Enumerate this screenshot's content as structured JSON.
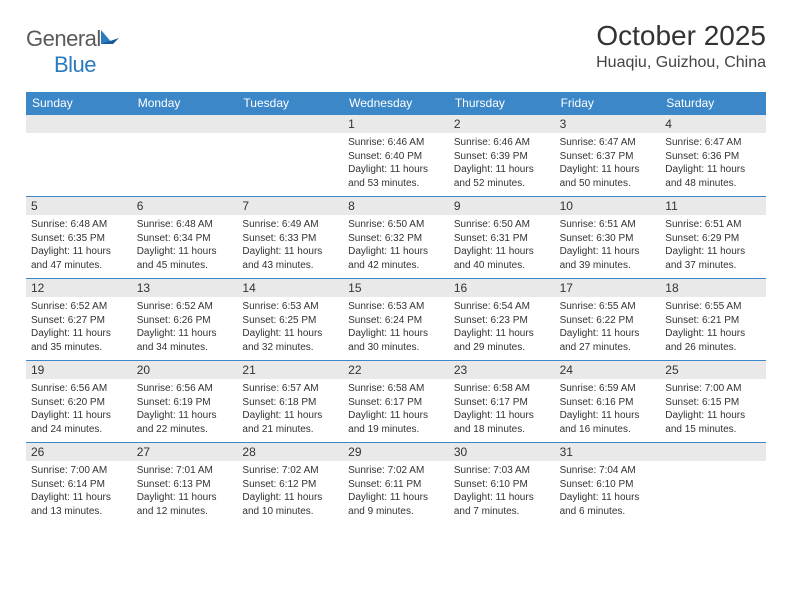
{
  "logo": {
    "left": "General",
    "right": "Blue"
  },
  "title": "October 2025",
  "location": "Huaqiu, Guizhou, China",
  "colors": {
    "header_bg": "#3b87c8",
    "header_fg": "#ffffff",
    "date_bg": "#e9e9e9",
    "border": "#3b87c8",
    "text": "#333333",
    "logo_gray": "#5a5a5a",
    "logo_blue": "#2b7bbf"
  },
  "day_names": [
    "Sunday",
    "Monday",
    "Tuesday",
    "Wednesday",
    "Thursday",
    "Friday",
    "Saturday"
  ],
  "weeks": [
    [
      {
        "date": "",
        "lines": []
      },
      {
        "date": "",
        "lines": []
      },
      {
        "date": "",
        "lines": []
      },
      {
        "date": "1",
        "lines": [
          "Sunrise: 6:46 AM",
          "Sunset: 6:40 PM",
          "Daylight: 11 hours and 53 minutes."
        ]
      },
      {
        "date": "2",
        "lines": [
          "Sunrise: 6:46 AM",
          "Sunset: 6:39 PM",
          "Daylight: 11 hours and 52 minutes."
        ]
      },
      {
        "date": "3",
        "lines": [
          "Sunrise: 6:47 AM",
          "Sunset: 6:37 PM",
          "Daylight: 11 hours and 50 minutes."
        ]
      },
      {
        "date": "4",
        "lines": [
          "Sunrise: 6:47 AM",
          "Sunset: 6:36 PM",
          "Daylight: 11 hours and 48 minutes."
        ]
      }
    ],
    [
      {
        "date": "5",
        "lines": [
          "Sunrise: 6:48 AM",
          "Sunset: 6:35 PM",
          "Daylight: 11 hours and 47 minutes."
        ]
      },
      {
        "date": "6",
        "lines": [
          "Sunrise: 6:48 AM",
          "Sunset: 6:34 PM",
          "Daylight: 11 hours and 45 minutes."
        ]
      },
      {
        "date": "7",
        "lines": [
          "Sunrise: 6:49 AM",
          "Sunset: 6:33 PM",
          "Daylight: 11 hours and 43 minutes."
        ]
      },
      {
        "date": "8",
        "lines": [
          "Sunrise: 6:50 AM",
          "Sunset: 6:32 PM",
          "Daylight: 11 hours and 42 minutes."
        ]
      },
      {
        "date": "9",
        "lines": [
          "Sunrise: 6:50 AM",
          "Sunset: 6:31 PM",
          "Daylight: 11 hours and 40 minutes."
        ]
      },
      {
        "date": "10",
        "lines": [
          "Sunrise: 6:51 AM",
          "Sunset: 6:30 PM",
          "Daylight: 11 hours and 39 minutes."
        ]
      },
      {
        "date": "11",
        "lines": [
          "Sunrise: 6:51 AM",
          "Sunset: 6:29 PM",
          "Daylight: 11 hours and 37 minutes."
        ]
      }
    ],
    [
      {
        "date": "12",
        "lines": [
          "Sunrise: 6:52 AM",
          "Sunset: 6:27 PM",
          "Daylight: 11 hours and 35 minutes."
        ]
      },
      {
        "date": "13",
        "lines": [
          "Sunrise: 6:52 AM",
          "Sunset: 6:26 PM",
          "Daylight: 11 hours and 34 minutes."
        ]
      },
      {
        "date": "14",
        "lines": [
          "Sunrise: 6:53 AM",
          "Sunset: 6:25 PM",
          "Daylight: 11 hours and 32 minutes."
        ]
      },
      {
        "date": "15",
        "lines": [
          "Sunrise: 6:53 AM",
          "Sunset: 6:24 PM",
          "Daylight: 11 hours and 30 minutes."
        ]
      },
      {
        "date": "16",
        "lines": [
          "Sunrise: 6:54 AM",
          "Sunset: 6:23 PM",
          "Daylight: 11 hours and 29 minutes."
        ]
      },
      {
        "date": "17",
        "lines": [
          "Sunrise: 6:55 AM",
          "Sunset: 6:22 PM",
          "Daylight: 11 hours and 27 minutes."
        ]
      },
      {
        "date": "18",
        "lines": [
          "Sunrise: 6:55 AM",
          "Sunset: 6:21 PM",
          "Daylight: 11 hours and 26 minutes."
        ]
      }
    ],
    [
      {
        "date": "19",
        "lines": [
          "Sunrise: 6:56 AM",
          "Sunset: 6:20 PM",
          "Daylight: 11 hours and 24 minutes."
        ]
      },
      {
        "date": "20",
        "lines": [
          "Sunrise: 6:56 AM",
          "Sunset: 6:19 PM",
          "Daylight: 11 hours and 22 minutes."
        ]
      },
      {
        "date": "21",
        "lines": [
          "Sunrise: 6:57 AM",
          "Sunset: 6:18 PM",
          "Daylight: 11 hours and 21 minutes."
        ]
      },
      {
        "date": "22",
        "lines": [
          "Sunrise: 6:58 AM",
          "Sunset: 6:17 PM",
          "Daylight: 11 hours and 19 minutes."
        ]
      },
      {
        "date": "23",
        "lines": [
          "Sunrise: 6:58 AM",
          "Sunset: 6:17 PM",
          "Daylight: 11 hours and 18 minutes."
        ]
      },
      {
        "date": "24",
        "lines": [
          "Sunrise: 6:59 AM",
          "Sunset: 6:16 PM",
          "Daylight: 11 hours and 16 minutes."
        ]
      },
      {
        "date": "25",
        "lines": [
          "Sunrise: 7:00 AM",
          "Sunset: 6:15 PM",
          "Daylight: 11 hours and 15 minutes."
        ]
      }
    ],
    [
      {
        "date": "26",
        "lines": [
          "Sunrise: 7:00 AM",
          "Sunset: 6:14 PM",
          "Daylight: 11 hours and 13 minutes."
        ]
      },
      {
        "date": "27",
        "lines": [
          "Sunrise: 7:01 AM",
          "Sunset: 6:13 PM",
          "Daylight: 11 hours and 12 minutes."
        ]
      },
      {
        "date": "28",
        "lines": [
          "Sunrise: 7:02 AM",
          "Sunset: 6:12 PM",
          "Daylight: 11 hours and 10 minutes."
        ]
      },
      {
        "date": "29",
        "lines": [
          "Sunrise: 7:02 AM",
          "Sunset: 6:11 PM",
          "Daylight: 11 hours and 9 minutes."
        ]
      },
      {
        "date": "30",
        "lines": [
          "Sunrise: 7:03 AM",
          "Sunset: 6:10 PM",
          "Daylight: 11 hours and 7 minutes."
        ]
      },
      {
        "date": "31",
        "lines": [
          "Sunrise: 7:04 AM",
          "Sunset: 6:10 PM",
          "Daylight: 11 hours and 6 minutes."
        ]
      },
      {
        "date": "",
        "lines": []
      }
    ]
  ]
}
